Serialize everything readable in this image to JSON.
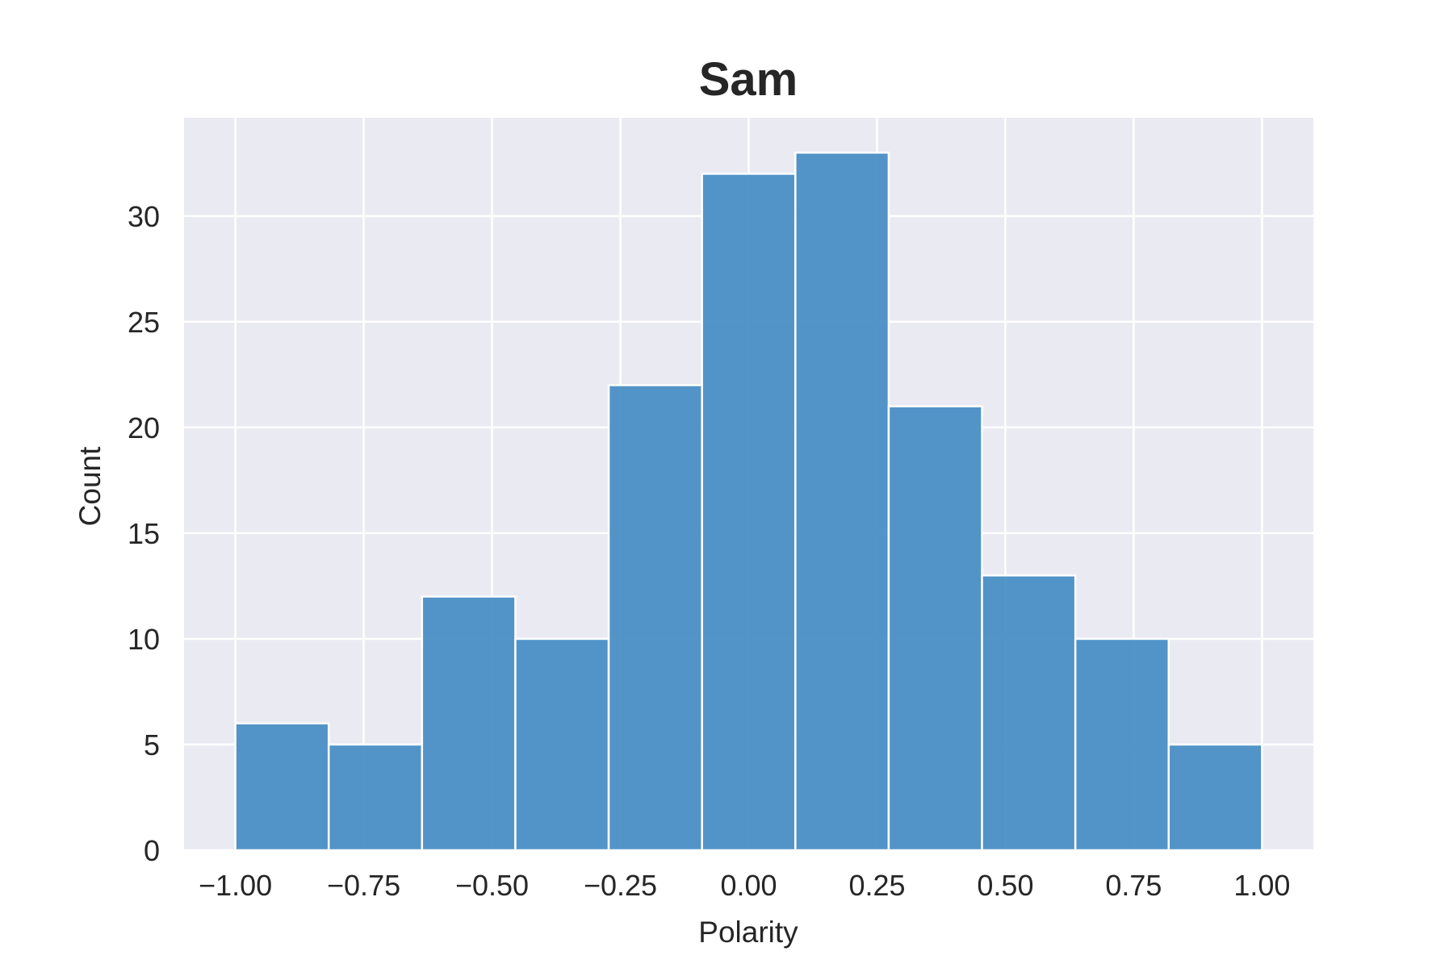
{
  "chart_data": {
    "type": "bar",
    "title": "Sam",
    "xlabel": "Polarity",
    "ylabel": "Count",
    "bin_edges": [
      -1.0,
      -0.8181818,
      -0.6363636,
      -0.4545455,
      -0.2727273,
      -0.0909091,
      0.0909091,
      0.2727273,
      0.4545455,
      0.6363636,
      0.8181818,
      1.0
    ],
    "values": [
      6,
      5,
      12,
      10,
      22,
      32,
      33,
      21,
      13,
      10,
      5
    ],
    "xlim": [
      -1.1,
      1.1
    ],
    "ylim": [
      0,
      34.65
    ],
    "xticks": [
      -1.0,
      -0.75,
      -0.5,
      -0.25,
      0.0,
      0.25,
      0.5,
      0.75,
      1.0
    ],
    "xtick_labels": [
      "−1.00",
      "−0.75",
      "−0.50",
      "−0.25",
      "0.00",
      "0.25",
      "0.50",
      "0.75",
      "1.00"
    ],
    "yticks": [
      0,
      5,
      10,
      15,
      20,
      25,
      30
    ],
    "ytick_labels": [
      "0",
      "5",
      "10",
      "15",
      "20",
      "25",
      "30"
    ],
    "grid": true,
    "colors": {
      "bar": "#4a8fc4",
      "plot_background": "#eaeaf2",
      "grid": "#ffffff",
      "text": "#262626"
    }
  }
}
